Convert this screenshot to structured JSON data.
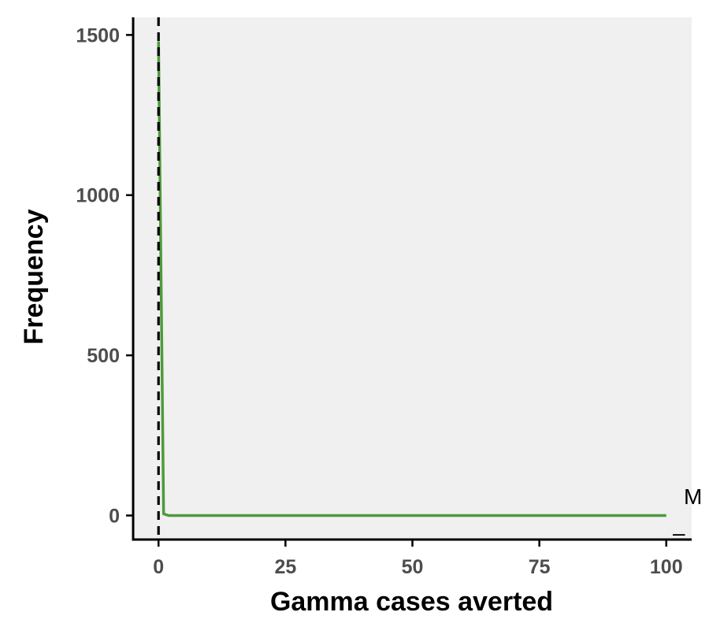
{
  "chart_data": {
    "type": "line",
    "xlabel": "Gamma cases averted",
    "ylabel": "Frequency",
    "xlim": [
      -5,
      105
    ],
    "ylim": [
      -75,
      1555
    ],
    "x_ticks": [
      0,
      25,
      50,
      75,
      100
    ],
    "y_ticks": [
      0,
      500,
      1000,
      1500
    ],
    "grid": false,
    "panel_background": "#f0f0f0",
    "series": [
      {
        "color": "#4e9a3c",
        "x": [
          0,
          1,
          2,
          3,
          4,
          5,
          10,
          20,
          30,
          40,
          50,
          60,
          70,
          80,
          90,
          100
        ],
        "values": [
          1480,
          5,
          0,
          0,
          0,
          0,
          0,
          0,
          0,
          0,
          0,
          0,
          0,
          0,
          0,
          0
        ]
      }
    ],
    "reference_line": {
      "axis": "x",
      "value": 0,
      "style": "dashed",
      "color": "#000000"
    },
    "legend_fragments": [
      "M",
      "–"
    ]
  }
}
